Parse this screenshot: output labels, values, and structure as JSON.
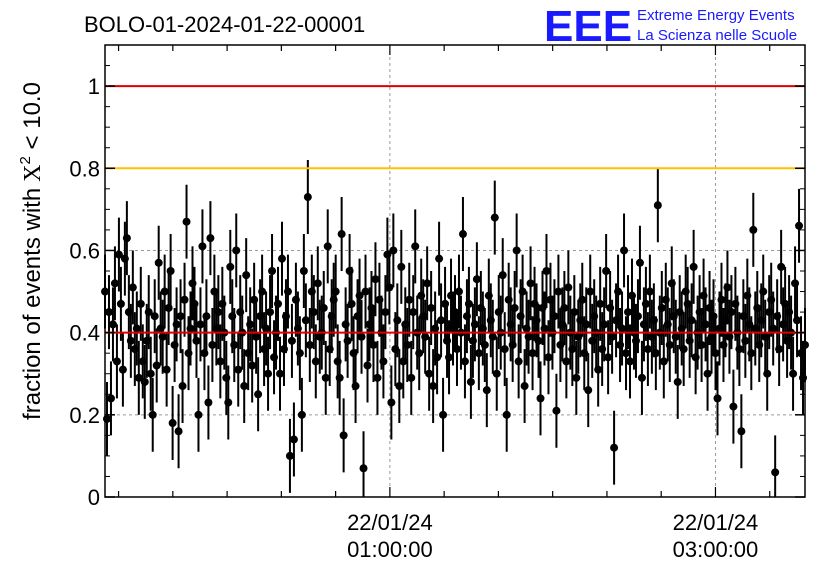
{
  "chart_data": {
    "type": "scatter",
    "title": "BOLO-01-2024-01-22-00001",
    "ylabel": "fraction of events with",
    "ylabel_symbol": "X",
    "ylabel_superscript": "2",
    "ylabel_condition": " < 10.0",
    "ylim": [
      0,
      1.1
    ],
    "yticks": [
      0,
      0.2,
      0.4,
      0.6,
      0.8,
      1
    ],
    "ytick_labels": [
      "0",
      "0.2",
      "0.4",
      "0.6",
      "0.8",
      "1"
    ],
    "xlim_hours": [
      -0.75,
      3.55
    ],
    "xticks": [
      {
        "hour": 1.0,
        "date": "22/01/24",
        "time": "01:00:00"
      },
      {
        "hour": 3.0,
        "date": "22/01/24",
        "time": "03:00:00"
      }
    ],
    "grid": true,
    "reference_lines": [
      {
        "value": 1.0,
        "color": "#e00000"
      },
      {
        "value": 0.8,
        "color": "#ffc000"
      },
      {
        "value": 0.4,
        "color": "#e00000"
      }
    ],
    "series": [
      {
        "marker_color": "#000000",
        "typical_error": 0.09,
        "x_start_hour": -0.75,
        "x_end_hour": 3.55,
        "values": [
          0.5,
          0.19,
          0.45,
          0.24,
          0.42,
          0.52,
          0.33,
          0.59,
          0.47,
          0.31,
          0.58,
          0.63,
          0.45,
          0.38,
          0.51,
          0.36,
          0.41,
          0.29,
          0.47,
          0.33,
          0.28,
          0.38,
          0.45,
          0.3,
          0.2,
          0.44,
          0.32,
          0.57,
          0.41,
          0.39,
          0.5,
          0.31,
          0.46,
          0.55,
          0.18,
          0.37,
          0.42,
          0.16,
          0.44,
          0.27,
          0.48,
          0.67,
          0.35,
          0.41,
          0.52,
          0.47,
          0.38,
          0.2,
          0.42,
          0.61,
          0.35,
          0.44,
          0.23,
          0.63,
          0.37,
          0.5,
          0.41,
          0.45,
          0.33,
          0.47,
          0.4,
          0.29,
          0.23,
          0.56,
          0.44,
          0.37,
          0.6,
          0.31,
          0.45,
          0.4,
          0.27,
          0.54,
          0.35,
          0.42,
          0.32,
          0.48,
          0.39,
          0.25,
          0.44,
          0.5,
          0.36,
          0.41,
          0.3,
          0.45,
          0.55,
          0.34,
          0.4,
          0.47,
          0.3,
          0.58,
          0.36,
          0.44,
          0.5,
          0.1,
          0.38,
          0.14,
          0.48,
          0.41,
          0.35,
          0.2,
          0.55,
          0.43,
          0.73,
          0.37,
          0.5,
          0.45,
          0.33,
          0.52,
          0.39,
          0.4,
          0.46,
          0.29,
          0.61,
          0.36,
          0.44,
          0.48,
          0.5,
          0.33,
          0.29,
          0.64,
          0.15,
          0.42,
          0.38,
          0.55,
          0.47,
          0.35,
          0.27,
          0.44,
          0.49,
          0.39,
          0.07,
          0.5,
          0.32,
          0.42,
          0.46,
          0.37,
          0.53,
          0.29,
          0.48,
          0.4,
          0.33,
          0.45,
          0.59,
          0.51,
          0.23,
          0.6,
          0.36,
          0.43,
          0.27,
          0.56,
          0.33,
          0.42,
          0.37,
          0.48,
          0.29,
          0.45,
          0.61,
          0.4,
          0.35,
          0.49,
          0.44,
          0.39,
          0.52,
          0.3,
          0.46,
          0.27,
          0.41,
          0.34,
          0.58,
          0.43,
          0.2,
          0.47,
          0.38,
          0.34,
          0.49,
          0.41,
          0.45,
          0.36,
          0.5,
          0.4,
          0.64,
          0.33,
          0.44,
          0.47,
          0.28,
          0.38,
          0.42,
          0.53,
          0.35,
          0.46,
          0.41,
          0.37,
          0.26,
          0.49,
          0.43,
          0.39,
          0.68,
          0.3,
          0.45,
          0.4,
          0.54,
          0.36,
          0.2,
          0.48,
          0.42,
          0.37,
          0.46,
          0.6,
          0.33,
          0.44,
          0.5,
          0.27,
          0.41,
          0.39,
          0.52,
          0.35,
          0.47,
          0.43,
          0.38,
          0.24,
          0.46,
          0.41,
          0.55,
          0.34,
          0.48,
          0.4,
          0.44,
          0.21,
          0.5,
          0.37,
          0.42,
          0.46,
          0.33,
          0.51,
          0.4,
          0.36,
          0.45,
          0.29,
          0.39,
          0.43,
          0.48,
          0.35,
          0.42,
          0.26,
          0.5,
          0.38,
          0.44,
          0.4,
          0.31,
          0.47,
          0.36,
          0.42,
          0.55,
          0.34,
          0.46,
          0.39,
          0.12,
          0.43,
          0.5,
          0.37,
          0.41,
          0.6,
          0.35,
          0.45,
          0.33,
          0.49,
          0.4,
          0.38,
          0.44,
          0.57,
          0.29,
          0.42,
          0.47,
          0.36,
          0.5,
          0.39,
          0.43,
          0.35,
          0.71,
          0.4,
          0.46,
          0.33,
          0.48,
          0.42,
          0.37,
          0.52,
          0.44,
          0.39,
          0.28,
          0.45,
          0.41,
          0.36,
          0.5,
          0.47,
          0.38,
          0.43,
          0.56,
          0.34,
          0.4,
          0.45,
          0.37,
          0.49,
          0.42,
          0.3,
          0.46,
          0.39,
          0.44,
          0.35,
          0.24,
          0.41,
          0.48,
          0.37,
          0.43,
          0.51,
          0.39,
          0.45,
          0.22,
          0.47,
          0.4,
          0.36,
          0.16,
          0.44,
          0.38,
          0.49,
          0.42,
          0.35,
          0.65,
          0.41,
          0.46,
          0.37,
          0.43,
          0.5,
          0.39,
          0.3,
          0.45,
          0.48,
          0.41,
          0.06,
          0.44,
          0.36,
          0.56,
          0.42,
          0.47,
          0.38,
          0.45,
          0.4,
          0.3,
          0.52,
          0.43,
          0.66,
          0.35,
          0.29,
          0.37
        ]
      }
    ]
  },
  "logo": {
    "mark": "EEE",
    "line1": "Extreme Energy Events",
    "line2": "La Scienza nelle Scuole",
    "color": "#1a1aff"
  }
}
